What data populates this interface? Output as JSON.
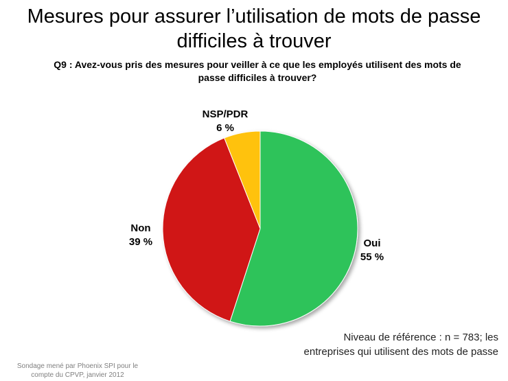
{
  "header": {
    "title_line1": "Mesures pour assurer l’utilisation de mots de passe",
    "title_line2": "difficiles à trouver",
    "question_line1": "Q9 :  Avez-vous pris des mesures  pour veiller à ce que les employés utilisent des mots de",
    "question_line2": "passe difficiles à trouver?"
  },
  "chart_data": {
    "type": "pie",
    "slices": [
      {
        "label": "Oui",
        "value": 55,
        "value_label": "55 %",
        "color": "#2ec35a"
      },
      {
        "label": "Non",
        "value": 39,
        "value_label": "39 %",
        "color": "#d01919"
      },
      {
        "label": "NSP/PDR",
        "value": 6,
        "value_label": "6 %",
        "color": "#ffc20e"
      }
    ],
    "start": "12 o'clock, clockwise"
  },
  "footer": {
    "base_line1": "Niveau de référence : n = 783; les",
    "base_line2": "entreprises qui utilisent des mots de passe",
    "source_line1": "Sondage mené par Phoenix SPI pour le",
    "source_line2": "compte du CPVP, janvier 2012"
  }
}
